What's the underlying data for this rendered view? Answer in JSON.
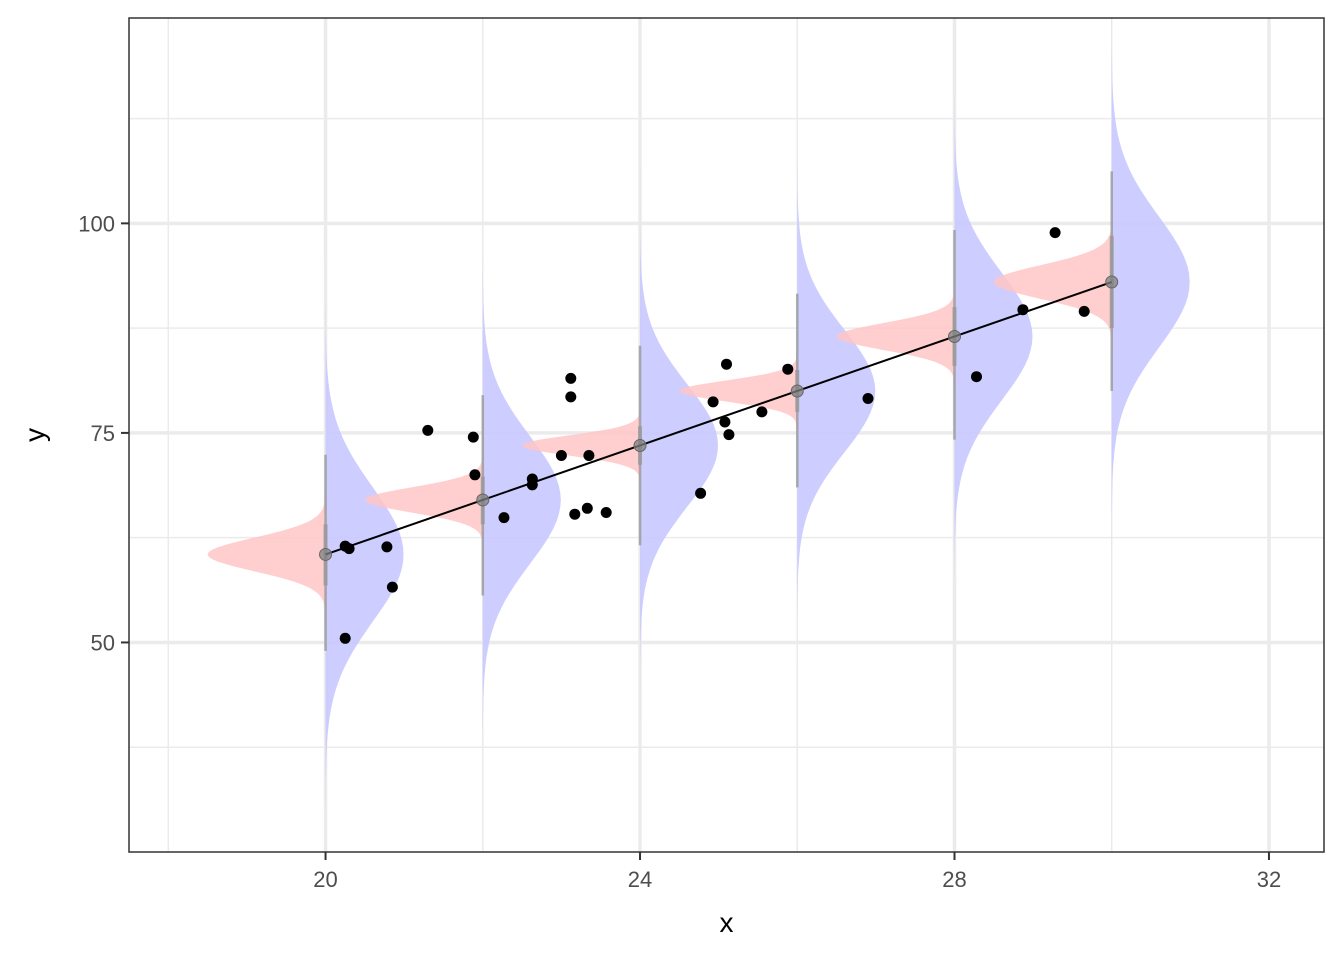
{
  "chart_data": {
    "type": "scatter",
    "title": "",
    "xlabel": "x",
    "ylabel": "y",
    "xlim": [
      17.5,
      32.7
    ],
    "ylim": [
      25,
      124.5
    ],
    "x_ticks": [
      20,
      24,
      28,
      32
    ],
    "y_ticks": [
      50,
      75,
      100
    ],
    "x_tick_labels": [
      "20",
      "24",
      "28",
      "32"
    ],
    "y_tick_labels": [
      "50",
      "75",
      "100"
    ],
    "x_minor_gridlines": [
      18,
      22,
      26,
      30
    ],
    "y_minor_gridlines": [
      37.5,
      62.5,
      87.5,
      112.5
    ],
    "grid": true,
    "colors": {
      "points": "#000000",
      "fit_line": "#000000",
      "uncertainty_density": "#c8c8ff",
      "prediction_density": "#ffc6c6",
      "interval_line": "#999999",
      "grid": "#ebebeb",
      "panel_border": "#333333"
    },
    "points": [
      {
        "x": 20.25,
        "y": 61.5
      },
      {
        "x": 20.3,
        "y": 61.2
      },
      {
        "x": 20.25,
        "y": 50.5
      },
      {
        "x": 20.78,
        "y": 61.4
      },
      {
        "x": 20.85,
        "y": 56.6
      },
      {
        "x": 21.3,
        "y": 75.3
      },
      {
        "x": 21.88,
        "y": 74.5
      },
      {
        "x": 21.9,
        "y": 70.0
      },
      {
        "x": 22.27,
        "y": 64.9
      },
      {
        "x": 22.63,
        "y": 69.5
      },
      {
        "x": 22.63,
        "y": 68.8
      },
      {
        "x": 23.0,
        "y": 72.3
      },
      {
        "x": 23.12,
        "y": 81.5
      },
      {
        "x": 23.12,
        "y": 79.3
      },
      {
        "x": 23.17,
        "y": 65.3
      },
      {
        "x": 23.33,
        "y": 66.0
      },
      {
        "x": 23.35,
        "y": 72.3
      },
      {
        "x": 23.57,
        "y": 65.5
      },
      {
        "x": 24.77,
        "y": 67.8
      },
      {
        "x": 24.93,
        "y": 78.7
      },
      {
        "x": 25.08,
        "y": 76.3
      },
      {
        "x": 25.13,
        "y": 74.8
      },
      {
        "x": 25.1,
        "y": 83.2
      },
      {
        "x": 25.55,
        "y": 77.5
      },
      {
        "x": 25.88,
        "y": 82.6
      },
      {
        "x": 26.9,
        "y": 79.1
      },
      {
        "x": 28.28,
        "y": 81.7
      },
      {
        "x": 28.87,
        "y": 89.7
      },
      {
        "x": 29.28,
        "y": 98.9
      },
      {
        "x": 29.65,
        "y": 89.5
      }
    ],
    "fit_line": {
      "x": [
        20,
        30
      ],
      "y": [
        60.5,
        93.0
      ]
    },
    "predictions": [
      {
        "x": 20,
        "mean": 60.5,
        "mean_sd": 2.0,
        "pred_sd": 8.0,
        "interval_inner": [
          56.8,
          64.1
        ],
        "interval_outer": [
          49.0,
          72.4
        ]
      },
      {
        "x": 22,
        "mean": 67.0,
        "mean_sd": 1.5,
        "pred_sd": 7.6,
        "interval_inner": [
          64.1,
          69.8
        ],
        "interval_outer": [
          55.6,
          79.5
        ]
      },
      {
        "x": 24,
        "mean": 73.5,
        "mean_sd": 1.2,
        "pred_sd": 7.3,
        "interval_inner": [
          71.2,
          75.8
        ],
        "interval_outer": [
          61.6,
          85.4
        ]
      },
      {
        "x": 26,
        "mean": 80.0,
        "mean_sd": 1.25,
        "pred_sd": 7.3,
        "interval_inner": [
          77.5,
          82.5
        ],
        "interval_outer": [
          68.5,
          91.6
        ]
      },
      {
        "x": 28,
        "mean": 86.5,
        "mean_sd": 1.6,
        "pred_sd": 7.6,
        "interval_inner": [
          83.0,
          90.0
        ],
        "interval_outer": [
          74.2,
          99.2
        ]
      },
      {
        "x": 30,
        "mean": 93.0,
        "mean_sd": 2.0,
        "pred_sd": 7.8,
        "interval_inner": [
          87.5,
          98.5
        ],
        "interval_outer": [
          80.0,
          106.2
        ]
      }
    ]
  }
}
